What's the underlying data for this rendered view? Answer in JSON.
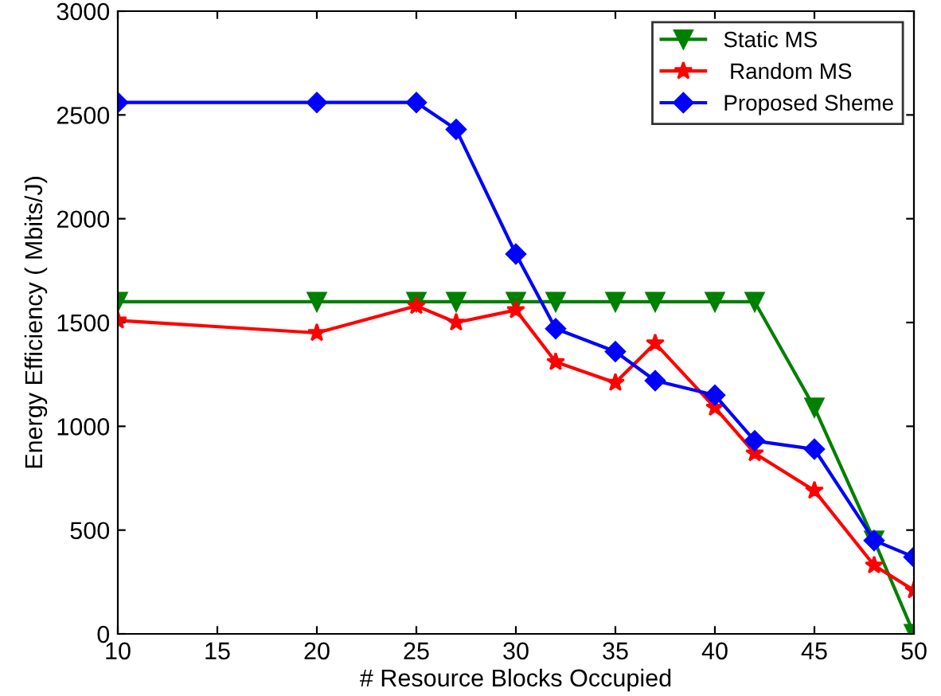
{
  "chart_data": {
    "type": "line",
    "xlabel": "# Resource Blocks Occupied",
    "ylabel": "Energy Efficiency ( Mbits/J)",
    "x": [
      10,
      20,
      25,
      27,
      30,
      32,
      35,
      37,
      40,
      42,
      45,
      48,
      50
    ],
    "xlim": [
      10,
      50
    ],
    "xticks": [
      10,
      15,
      20,
      25,
      30,
      35,
      40,
      45,
      50
    ],
    "ylim": [
      0,
      3000
    ],
    "yticks": [
      0,
      500,
      1000,
      1500,
      2000,
      2500,
      3000
    ],
    "grid": false,
    "legend": "top right",
    "line_style": "solid",
    "series": [
      {
        "name": "Static MS",
        "color": "#008000",
        "marker": "triangle",
        "values": [
          1600,
          1600,
          1600,
          1600,
          1600,
          1600,
          1600,
          1600,
          1600,
          1600,
          1090,
          450,
          0
        ]
      },
      {
        "name": " Random MS",
        "color": "#ff0000",
        "marker": "star",
        "values": [
          1510,
          1450,
          1580,
          1500,
          1560,
          1310,
          1210,
          1400,
          1090,
          870,
          690,
          330,
          210
        ]
      },
      {
        "name": "Proposed Sheme",
        "color": "#0000ff",
        "marker": "diamond",
        "values": [
          2560,
          2560,
          2560,
          2430,
          1830,
          1470,
          1360,
          1220,
          1150,
          930,
          890,
          450,
          370
        ]
      }
    ]
  }
}
